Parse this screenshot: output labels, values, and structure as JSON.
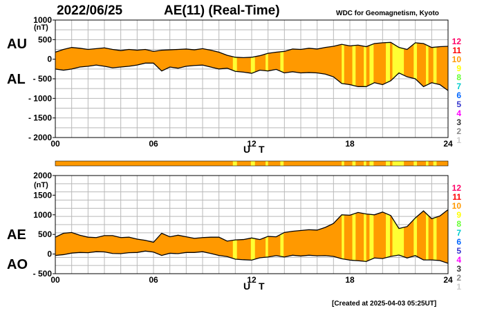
{
  "header": {
    "date": "2022/06/25",
    "title": "AE(11) (Real-Time)",
    "source": "WDC for Geomagnetism, Kyoto"
  },
  "footer": {
    "created": "[Created at 2025-04-03 05:25UT]"
  },
  "colors": {
    "fill": "#ff9900",
    "highlight": "#ffff33",
    "line": "#000000",
    "grid": "#b8b8b8"
  },
  "activity_scale": {
    "levels": [
      {
        "label": "12",
        "color": "#ff0066"
      },
      {
        "label": "11",
        "color": "#ff0000"
      },
      {
        "label": "10",
        "color": "#ff9900"
      },
      {
        "label": "9",
        "color": "#ffff00"
      },
      {
        "label": "8",
        "color": "#66ff33"
      },
      {
        "label": "7",
        "color": "#00cccc"
      },
      {
        "label": "6",
        "color": "#0066ff"
      },
      {
        "label": "5",
        "color": "#3333cc"
      },
      {
        "label": "4",
        "color": "#ff00ff"
      },
      {
        "label": "3",
        "color": "#333333"
      },
      {
        "label": "2",
        "color": "#888888"
      },
      {
        "label": "1",
        "color": "#cccccc"
      }
    ]
  },
  "activity_bar": {
    "base_level": "10",
    "highlight_level": "9",
    "highlight_hours": [
      [
        10.85,
        11.1
      ],
      [
        11.95,
        12.2
      ],
      [
        12.85,
        13.0
      ],
      [
        13.75,
        13.95
      ],
      [
        17.5,
        17.65
      ],
      [
        18.15,
        18.35
      ],
      [
        18.85,
        19.0
      ],
      [
        19.2,
        19.45
      ],
      [
        20.2,
        20.45
      ],
      [
        20.6,
        21.3
      ],
      [
        21.9,
        22.1
      ],
      [
        22.65,
        22.8
      ],
      [
        23.1,
        23.3
      ]
    ]
  },
  "chart_data": [
    {
      "type": "area",
      "name": "AU-AL",
      "series_labels": [
        "AU",
        "AL"
      ],
      "xlabel": "U T",
      "xlim": [
        0,
        24
      ],
      "ylim": [
        -2000,
        1000
      ],
      "ylabel": "(nT)",
      "x_tick_labels": [
        "00",
        "06",
        "12",
        "18",
        "24"
      ],
      "x_ticks": [
        0,
        6,
        12,
        18,
        24
      ],
      "y_ticks": [
        1000,
        500,
        0,
        -500,
        -1000,
        -1500,
        -2000
      ],
      "y_tick_labels": [
        "1000",
        "500",
        "0",
        "- 500",
        "- 1000",
        "- 1500",
        "- 2000"
      ],
      "grid": true,
      "hours": [
        0,
        0.5,
        1,
        1.5,
        2,
        2.5,
        3,
        3.5,
        4,
        4.5,
        5,
        5.5,
        6,
        6.5,
        7,
        7.5,
        8,
        8.5,
        9,
        9.5,
        10,
        10.5,
        11,
        11.5,
        12,
        12.5,
        13,
        13.5,
        14,
        14.5,
        15,
        15.5,
        16,
        16.5,
        17,
        17.5,
        18,
        18.5,
        19,
        19.5,
        20,
        20.5,
        21,
        21.5,
        22,
        22.5,
        23,
        23.5,
        24
      ],
      "AU": [
        180,
        250,
        300,
        280,
        250,
        270,
        290,
        250,
        220,
        250,
        230,
        250,
        200,
        230,
        240,
        250,
        260,
        240,
        270,
        230,
        180,
        100,
        50,
        40,
        50,
        90,
        150,
        180,
        200,
        260,
        250,
        280,
        260,
        300,
        330,
        380,
        340,
        360,
        320,
        400,
        420,
        430,
        300,
        250,
        420,
        400,
        300,
        320,
        330
      ],
      "AL": [
        -250,
        -280,
        -250,
        -200,
        -180,
        -150,
        -180,
        -220,
        -200,
        -180,
        -150,
        -100,
        -100,
        -300,
        -200,
        -230,
        -180,
        -160,
        -150,
        -200,
        -250,
        -230,
        -310,
        -330,
        -360,
        -280,
        -300,
        -260,
        -350,
        -320,
        -350,
        -340,
        -350,
        -380,
        -450,
        -620,
        -650,
        -700,
        -700,
        -600,
        -650,
        -550,
        -350,
        -450,
        -500,
        -700,
        -600,
        -650,
        -800
      ]
    },
    {
      "type": "area",
      "name": "AE-AO",
      "series_labels": [
        "AE",
        "AO"
      ],
      "xlabel": "U T",
      "xlim": [
        0,
        24
      ],
      "ylim": [
        -500,
        2000
      ],
      "ylabel": "(nT)",
      "x_tick_labels": [
        "00",
        "06",
        "12",
        "18",
        "24"
      ],
      "x_ticks": [
        0,
        6,
        12,
        18,
        24
      ],
      "y_ticks": [
        2000,
        1500,
        1000,
        500,
        0,
        -500
      ],
      "y_tick_labels": [
        "2000",
        "1500",
        "1000",
        "500",
        "0",
        "- 500"
      ],
      "grid": true,
      "hours": [
        0,
        0.5,
        1,
        1.5,
        2,
        2.5,
        3,
        3.5,
        4,
        4.5,
        5,
        5.5,
        6,
        6.5,
        7,
        7.5,
        8,
        8.5,
        9,
        9.5,
        10,
        10.5,
        11,
        11.5,
        12,
        12.5,
        13,
        13.5,
        14,
        14.5,
        15,
        15.5,
        16,
        16.5,
        17,
        17.5,
        18,
        18.5,
        19,
        19.5,
        20,
        20.5,
        21,
        21.5,
        22,
        22.5,
        23,
        23.5,
        24
      ],
      "AE": [
        430,
        530,
        550,
        480,
        430,
        420,
        470,
        470,
        420,
        430,
        380,
        350,
        300,
        530,
        440,
        480,
        440,
        400,
        420,
        430,
        430,
        330,
        360,
        370,
        410,
        370,
        450,
        440,
        550,
        580,
        600,
        620,
        610,
        680,
        780,
        1000,
        990,
        1060,
        1020,
        1000,
        1070,
        980,
        650,
        700,
        920,
        1100,
        900,
        970,
        1130
      ],
      "AO": [
        -35,
        -15,
        25,
        40,
        35,
        60,
        55,
        15,
        10,
        35,
        40,
        75,
        50,
        -35,
        20,
        10,
        40,
        40,
        60,
        15,
        -35,
        -65,
        -130,
        -145,
        -155,
        -95,
        -75,
        -40,
        -75,
        -30,
        -50,
        -30,
        -45,
        -40,
        -60,
        -120,
        -155,
        -170,
        -190,
        -100,
        -115,
        -60,
        -25,
        -100,
        -40,
        -150,
        -150,
        -165,
        -235
      ]
    }
  ]
}
